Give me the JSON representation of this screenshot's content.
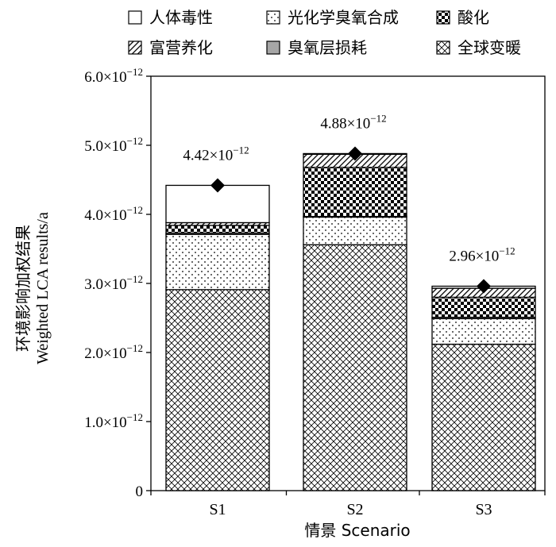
{
  "chart_data": {
    "type": "bar",
    "stacked": true,
    "categories": [
      "S1",
      "S2",
      "S3"
    ],
    "series": [
      {
        "name": "全球变暖",
        "pattern": "crosshatch",
        "values": [
          2.91e-12,
          3.56e-12,
          2.12e-12
        ]
      },
      {
        "name": "光化学臭氧合成",
        "pattern": "dots",
        "values": [
          8e-13,
          4e-13,
          3.7e-13
        ]
      },
      {
        "name": "臭氧层损耗",
        "pattern": "solid-gray",
        "values": [
          2e-14,
          1e-14,
          2e-14
        ]
      },
      {
        "name": "酸化",
        "pattern": "checker",
        "values": [
          1.1e-13,
          7.1e-13,
          2.9e-13
        ]
      },
      {
        "name": "富营养化",
        "pattern": "diagonal",
        "values": [
          4e-14,
          1.9e-13,
          1.3e-13
        ]
      },
      {
        "name": "人体毒性",
        "pattern": "empty",
        "values": [
          5.4e-13,
          1e-14,
          3e-14
        ]
      }
    ],
    "totals": [
      4.42e-12,
      4.88e-12,
      2.96e-12
    ],
    "total_labels": [
      {
        "mantissa": "4.42",
        "exp": "−12"
      },
      {
        "mantissa": "4.88",
        "exp": "−12"
      },
      {
        "mantissa": "2.96",
        "exp": "−12"
      }
    ],
    "legend_order": [
      "人体毒性",
      "光化学臭氧合成",
      "酸化",
      "富营养化",
      "臭氧层损耗",
      "全球变暖"
    ],
    "legend_position": "top",
    "ylabel_cn": "环境影响加权结果",
    "ylabel_en": "Weighted LCA results/a",
    "xlabel": "情景 Scenario",
    "ylim": [
      0,
      6e-12
    ],
    "yticks": [
      {
        "value": 0,
        "mantissa": "0",
        "exp": ""
      },
      {
        "value": 1e-12,
        "mantissa": "1.0",
        "exp": "−12"
      },
      {
        "value": 2e-12,
        "mantissa": "2.0",
        "exp": "−12"
      },
      {
        "value": 3e-12,
        "mantissa": "3.0",
        "exp": "−12"
      },
      {
        "value": 4e-12,
        "mantissa": "4.0",
        "exp": "−12"
      },
      {
        "value": 5e-12,
        "mantissa": "5.0",
        "exp": "−12"
      },
      {
        "value": 6e-12,
        "mantissa": "6.0",
        "exp": "−12"
      }
    ],
    "grid": false,
    "colors": {
      "bar_stroke": "#000000",
      "gray_fill": "#a6a6a6",
      "marker": "#000000"
    }
  }
}
